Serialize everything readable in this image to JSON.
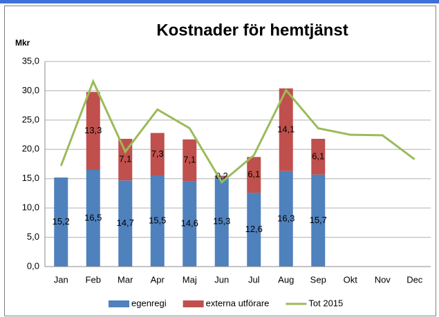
{
  "chart_data": {
    "type": "stacked_bar_line",
    "title": "Kostnader för hemtjänst",
    "y_label": "Mkr",
    "categories": [
      "Jan",
      "Feb",
      "Mar",
      "Apr",
      "Maj",
      "Jun",
      "Jul",
      "Aug",
      "Sep",
      "Okt",
      "Nov",
      "Dec"
    ],
    "series": [
      {
        "name": "egenregi",
        "color": "#4f81bd",
        "kind": "bar",
        "values": [
          15.2,
          16.5,
          14.7,
          15.5,
          14.6,
          15.3,
          12.6,
          16.3,
          15.7,
          null,
          null,
          null
        ],
        "value_labels": [
          "15,2",
          "16,5",
          "14,7",
          "15,5",
          "14,6",
          "15,3",
          "12,6",
          "16,3",
          "15,7",
          null,
          null,
          null
        ]
      },
      {
        "name": "externa utförare",
        "color": "#c0504d",
        "kind": "bar",
        "values": [
          null,
          13.3,
          7.1,
          7.3,
          7.1,
          0.2,
          6.1,
          14.1,
          6.1,
          null,
          null,
          null
        ],
        "value_labels": [
          null,
          "13,3",
          "7,1",
          "7,3",
          "7,1",
          "0,2",
          "6,1",
          "14,1",
          "6,1",
          null,
          null,
          null
        ]
      },
      {
        "name": "Tot 2015",
        "color": "#9bbb59",
        "kind": "line",
        "values": [
          17.2,
          31.6,
          19.6,
          26.8,
          23.6,
          14.4,
          19.0,
          30.1,
          23.6,
          22.5,
          22.4,
          18.3
        ]
      }
    ],
    "ylim": [
      0,
      35
    ],
    "yticks": [
      {
        "value": 0,
        "label": "0,0"
      },
      {
        "value": 5,
        "label": "5,0"
      },
      {
        "value": 10,
        "label": "10,0"
      },
      {
        "value": 15,
        "label": "15,0"
      },
      {
        "value": 20,
        "label": "20,0"
      },
      {
        "value": 25,
        "label": "25,0"
      },
      {
        "value": 30,
        "label": "30,0"
      },
      {
        "value": 35,
        "label": "35,0"
      }
    ],
    "grid": true
  }
}
